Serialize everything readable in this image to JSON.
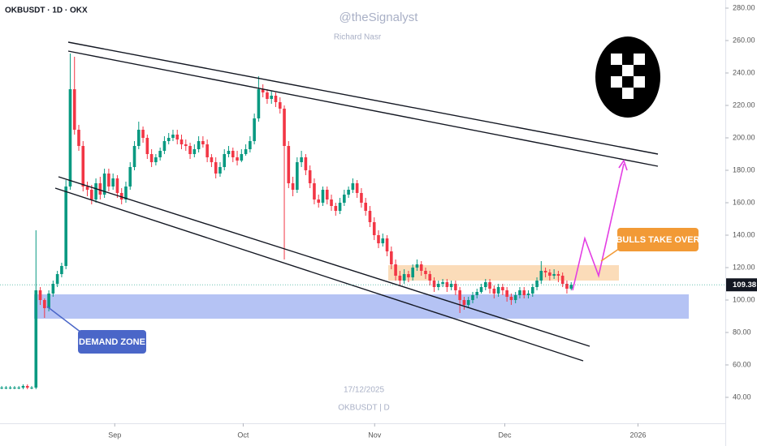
{
  "chart_data": {
    "type": "candlestick",
    "symbol_title": "OKBUSDT · 1D · OKX",
    "watermark": "@theSignalyst",
    "author": "Richard Nasr",
    "date_caption": "17/12/2025",
    "footer_symbol": "OKBUSDT | D",
    "annotations": [
      "DEMAND ZONE",
      "BULLS TAKE OVER"
    ],
    "up_color": "#089981",
    "down_color": "#f23645",
    "xlim": [
      -0.4,
      169
    ],
    "ylim": [
      24,
      285
    ],
    "xticks": [
      {
        "value": 26.4,
        "label": "Sep"
      },
      {
        "value": 56.4,
        "label": "Oct"
      },
      {
        "value": 87.1,
        "label": "Nov"
      },
      {
        "value": 117.5,
        "label": "Dec"
      },
      {
        "value": 148.6,
        "label": "2026"
      }
    ],
    "yticks": [
      {
        "value": 40,
        "label": "40.00"
      },
      {
        "value": 60,
        "label": "60.00"
      },
      {
        "value": 80,
        "label": "80.00"
      },
      {
        "value": 100,
        "label": "100.00"
      },
      {
        "value": 120,
        "label": "120.00"
      },
      {
        "value": 140,
        "label": "140.00"
      },
      {
        "value": 160,
        "label": "160.00"
      },
      {
        "value": 180,
        "label": "180.00"
      },
      {
        "value": 200,
        "label": "200.00"
      },
      {
        "value": 220,
        "label": "220.00"
      },
      {
        "value": 240,
        "label": "240.00"
      },
      {
        "value": 260,
        "label": "260.00"
      },
      {
        "value": 280,
        "label": "280.00"
      }
    ],
    "x": [
      0,
      1,
      2,
      3,
      4,
      5,
      6,
      7,
      8,
      9,
      10,
      11,
      12,
      13,
      14,
      15,
      16,
      17,
      18,
      19,
      20,
      21,
      22,
      23,
      24,
      25,
      26,
      27,
      28,
      29,
      30,
      31,
      32,
      33,
      34,
      35,
      36,
      37,
      38,
      39,
      40,
      41,
      42,
      43,
      44,
      45,
      46,
      47,
      48,
      49,
      50,
      51,
      52,
      53,
      54,
      55,
      56,
      57,
      58,
      59,
      60,
      61,
      62,
      63,
      64,
      65,
      66,
      67,
      68,
      69,
      70,
      71,
      72,
      73,
      74,
      75,
      76,
      77,
      78,
      79,
      80,
      81,
      82,
      83,
      84,
      85,
      86,
      87,
      88,
      89,
      90,
      91,
      92,
      93,
      94,
      95,
      96,
      97,
      98,
      99,
      100,
      101,
      102,
      103,
      104,
      105,
      106,
      107,
      108,
      109,
      110,
      111,
      112,
      113,
      114,
      115,
      116,
      117,
      118,
      119,
      120,
      121,
      122,
      123,
      124,
      125,
      126,
      127,
      128,
      129,
      130,
      131,
      132,
      133
    ],
    "open": [
      46,
      46,
      46,
      46,
      46,
      46,
      47,
      46,
      46,
      106,
      100,
      95,
      104,
      110,
      116,
      121,
      170,
      230,
      205,
      195,
      170,
      168,
      162,
      172,
      165,
      178,
      170,
      175,
      166,
      162,
      170,
      182,
      195,
      205,
      200,
      190,
      185,
      188,
      192,
      198,
      200,
      202,
      199,
      196,
      195,
      190,
      193,
      198,
      196,
      188,
      185,
      178,
      182,
      190,
      192,
      188,
      186,
      190,
      193,
      198,
      212,
      230,
      228,
      224,
      226,
      222,
      218,
      195,
      172,
      168,
      185,
      188,
      180,
      172,
      162,
      160,
      168,
      162,
      158,
      155,
      160,
      165,
      168,
      172,
      166,
      160,
      155,
      148,
      140,
      135,
      138,
      130,
      122,
      115,
      112,
      116,
      114,
      120,
      122,
      118,
      116,
      112,
      108,
      110,
      111,
      108,
      110,
      106,
      100,
      97,
      100,
      103,
      105,
      108,
      111,
      107,
      104,
      108,
      106,
      102,
      100,
      103,
      106,
      103,
      104,
      108,
      112,
      118,
      117,
      115,
      116,
      115,
      110,
      107
    ],
    "high": [
      47,
      47,
      47,
      47,
      47,
      48,
      48,
      47,
      143,
      108,
      101,
      106,
      112,
      118,
      123,
      174,
      252,
      250,
      208,
      198,
      173,
      171,
      175,
      176,
      181,
      181,
      178,
      177,
      169,
      173,
      185,
      198,
      210,
      207,
      202,
      193,
      190,
      194,
      201,
      203,
      205,
      205,
      202,
      199,
      197,
      196,
      201,
      201,
      199,
      190,
      188,
      185,
      193,
      195,
      194,
      192,
      193,
      196,
      201,
      215,
      238,
      233,
      230,
      229,
      228,
      225,
      220,
      198,
      176,
      188,
      192,
      190,
      183,
      175,
      165,
      170,
      170,
      165,
      160,
      163,
      168,
      170,
      175,
      174,
      169,
      163,
      158,
      151,
      143,
      141,
      140,
      133,
      125,
      118,
      119,
      118,
      122,
      125,
      124,
      120,
      118,
      114,
      112,
      113,
      113,
      112,
      112,
      108,
      102,
      102,
      105,
      107,
      110,
      113,
      113,
      109,
      110,
      110,
      108,
      104,
      105,
      108,
      108,
      106,
      110,
      114,
      124,
      120,
      119,
      119,
      118,
      117,
      112,
      111
    ],
    "low": [
      45,
      45,
      45,
      45,
      45,
      45,
      45,
      45,
      45,
      97,
      89,
      93,
      102,
      108,
      114,
      119,
      168,
      202,
      192,
      167,
      164,
      159,
      160,
      162,
      163,
      167,
      168,
      163,
      159,
      160,
      168,
      180,
      193,
      197,
      187,
      182,
      183,
      186,
      190,
      196,
      198,
      196,
      193,
      192,
      187,
      188,
      191,
      194,
      185,
      182,
      175,
      176,
      180,
      188,
      185,
      183,
      185,
      189,
      191,
      196,
      210,
      225,
      221,
      221,
      219,
      215,
      125,
      169,
      164,
      166,
      182,
      177,
      169,
      159,
      157,
      158,
      159,
      155,
      152,
      153,
      158,
      163,
      166,
      163,
      157,
      152,
      145,
      137,
      132,
      133,
      127,
      119,
      112,
      109,
      110,
      111,
      112,
      118,
      115,
      113,
      109,
      105,
      106,
      108,
      105,
      106,
      103,
      92,
      94,
      95,
      98,
      101,
      104,
      106,
      104,
      101,
      102,
      103,
      99,
      97,
      98,
      101,
      101,
      101,
      102,
      106,
      110,
      114,
      112,
      113,
      111,
      108,
      104,
      106
    ],
    "close": [
      46,
      46,
      46,
      46,
      46,
      47,
      46,
      46,
      106,
      100,
      95,
      104,
      110,
      116,
      121,
      170,
      230,
      205,
      195,
      170,
      168,
      162,
      172,
      165,
      178,
      170,
      175,
      166,
      162,
      170,
      182,
      195,
      205,
      200,
      190,
      185,
      188,
      192,
      198,
      200,
      202,
      199,
      196,
      195,
      190,
      193,
      198,
      196,
      188,
      185,
      178,
      182,
      190,
      192,
      188,
      186,
      190,
      193,
      198,
      212,
      230,
      228,
      224,
      226,
      222,
      218,
      195,
      172,
      168,
      185,
      188,
      180,
      172,
      162,
      160,
      168,
      162,
      158,
      155,
      160,
      165,
      168,
      172,
      166,
      160,
      155,
      148,
      140,
      135,
      138,
      130,
      122,
      115,
      112,
      116,
      114,
      120,
      122,
      118,
      116,
      112,
      108,
      110,
      111,
      108,
      110,
      106,
      100,
      97,
      100,
      103,
      105,
      108,
      111,
      107,
      104,
      108,
      106,
      102,
      100,
      103,
      106,
      103,
      104,
      108,
      112,
      118,
      117,
      115,
      116,
      115,
      110,
      107,
      109.38
    ]
  }
}
